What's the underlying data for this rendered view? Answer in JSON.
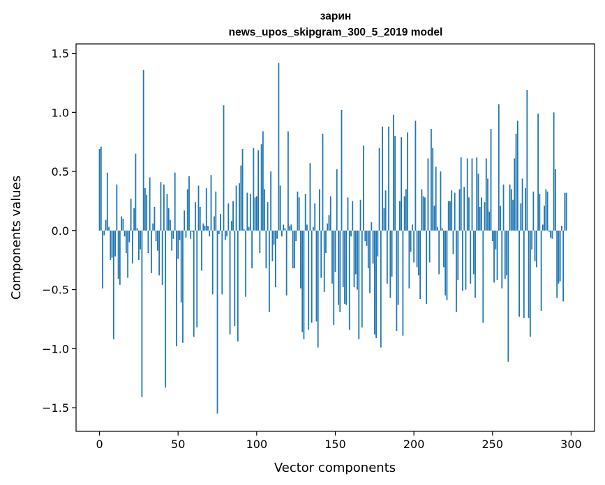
{
  "chart_data": {
    "type": "bar",
    "title": "зарин",
    "subtitle": "news_upos_skipgram_300_5_2019 model",
    "xlabel": "Vector components",
    "ylabel": "Components values",
    "xlim": [
      -14.9,
      314.9
    ],
    "ylim": [
      -1.7,
      1.58
    ],
    "xticks": [
      0,
      50,
      100,
      150,
      200,
      250,
      300
    ],
    "xtick_labels": [
      "0",
      "50",
      "100",
      "150",
      "200",
      "250",
      "300"
    ],
    "yticks": [
      -1.5,
      -1.0,
      -0.5,
      0.0,
      0.5,
      1.0,
      1.5
    ],
    "ytick_labels": [
      "−1.5",
      "−1.0",
      "−0.5",
      "0.0",
      "0.5",
      "1.0",
      "1.5"
    ],
    "bar_color": "#1f77b4",
    "grid": false,
    "values": [
      0.69,
      0.71,
      -0.49,
      -0.04,
      0.09,
      0.49,
      0.03,
      -0.25,
      -0.23,
      -0.92,
      -0.22,
      0.39,
      -0.41,
      -0.46,
      0.12,
      0.1,
      -0.05,
      -0.19,
      -0.4,
      -0.1,
      0.27,
      -0.28,
      0.19,
      0.65,
      0.02,
      -0.25,
      -0.16,
      -1.41,
      1.36,
      0.36,
      0.3,
      -0.19,
      0.45,
      -0.36,
      0.06,
      0.2,
      -0.09,
      -0.17,
      -0.38,
      0.41,
      -0.46,
      0.39,
      -1.33,
      0.31,
      0.19,
      0.09,
      -0.17,
      -0.07,
      0.49,
      -0.98,
      -0.24,
      -0.08,
      -0.61,
      -0.95,
      0.17,
      -0.06,
      0.35,
      0.46,
      -0.07,
      -0.01,
      -0.9,
      0.24,
      -0.82,
      0.38,
      0.2,
      -0.34,
      0.06,
      0.04,
      0.36,
      0.04,
      -0.05,
      0.47,
      -0.54,
      0.12,
      0.33,
      -1.55,
      -0.03,
      0.14,
      -0.54,
      1.06,
      -0.08,
      -0.05,
      0.23,
      -0.88,
      0.08,
      0.25,
      -0.81,
      0.38,
      -0.94,
      0.4,
      0.55,
      0.69,
      0.01,
      -0.56,
      0.32,
      0.03,
      0.31,
      -0.32,
      0.7,
      0.28,
      0.29,
      0.68,
      -0.19,
      0.73,
      0.84,
      0.35,
      -0.32,
      0.24,
      -0.69,
      0.5,
      -0.26,
      -0.12,
      -0.48,
      -0.07,
      1.42,
      0.38,
      -0.05,
      0.05,
      0.02,
      -0.55,
      0.84,
      0.04,
      0.05,
      -0.32,
      -0.32,
      -0.09,
      0.33,
      0.28,
      -0.49,
      -0.86,
      -0.92,
      0.31,
      0.05,
      -0.84,
      0.57,
      -0.78,
      0.03,
      0.23,
      -0.77,
      -0.99,
      0.35,
      -0.4,
      0.82,
      -0.52,
      -0.19,
      0.06,
      0.13,
      0.29,
      -0.45,
      -0.8,
      -0.35,
      0.52,
      -0.63,
      -0.69,
      1.02,
      -0.48,
      -0.62,
      -0.63,
      0.28,
      -0.84,
      -0.05,
      0.25,
      -0.48,
      -0.37,
      -0.5,
      -0.92,
      0.26,
      -0.82,
      0.72,
      -0.09,
      -0.13,
      -0.32,
      -0.53,
      0.07,
      -0.28,
      -0.88,
      -0.91,
      -0.22,
      0.7,
      -0.99,
      0.88,
      0.19,
      0.34,
      -0.45,
      0.88,
      -0.57,
      -0.39,
      0.98,
      0.8,
      -0.85,
      -0.63,
      0.25,
      0.79,
      -0.89,
      0.29,
      0.35,
      0.83,
      -0.49,
      -0.18,
      0.05,
      -0.27,
      0.93,
      -0.31,
      -0.38,
      -0.58,
      0.35,
      0.29,
      0.28,
      -0.62,
      0.61,
      -0.27,
      0.86,
      0.7,
      0.21,
      0.54,
      0.03,
      -0.37,
      0.5,
      0.02,
      -0.31,
      -0.55,
      -0.59,
      0.25,
      0.25,
      0.34,
      -0.2,
      0.32,
      -0.69,
      -0.42,
      0.35,
      0.62,
      -0.51,
      0.37,
      -0.5,
      0.61,
      0.28,
      -0.45,
      0.61,
      -0.37,
      -0.57,
      0.62,
      0.48,
      0.2,
      0.28,
      -0.78,
      0.24,
      0.61,
      0.44,
      0.16,
      0.86,
      -0.09,
      -0.44,
      -0.16,
      -0.42,
      1.07,
      0.21,
      -0.49,
      0.39,
      -0.41,
      -0.38,
      -1.11,
      0.39,
      0.35,
      0.26,
      0.61,
      0.82,
      0.93,
      -0.73,
      0.23,
      0.44,
      -0.74,
      0.36,
      1.19,
      -0.74,
      -0.9,
      -0.16,
      0.33,
      -0.26,
      -0.31,
      0.99,
      0.31,
      -0.68,
      0.05,
      0.21,
      0.35,
      0.33,
      -0.01,
      -0.06,
      -0.07,
      1.0,
      0.52,
      -0.57,
      -0.45,
      -0.43,
      0.04,
      -0.6,
      0.32,
      0.32
    ]
  }
}
